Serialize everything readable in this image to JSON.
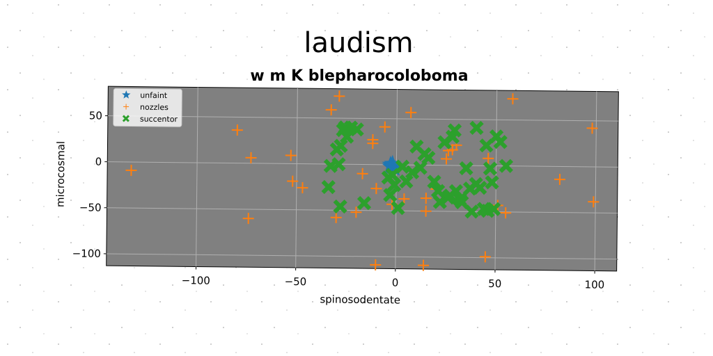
{
  "chart_data": {
    "type": "scatter",
    "title": "laudism",
    "subtitle": "w m K blepharocoloboma",
    "xlabel": "spinosodentate",
    "ylabel": "microcosmal",
    "xlim": [
      -145,
      111
    ],
    "ylim": [
      -113,
      82
    ],
    "xticks": [
      -100,
      -50,
      0,
      50,
      100
    ],
    "yticks": [
      -100,
      -50,
      0,
      50
    ],
    "xtick_labels": [
      "−100",
      "−50",
      "0",
      "50",
      "100"
    ],
    "ytick_labels": [
      "−100",
      "−50",
      "0",
      "50"
    ],
    "grid": true,
    "legend_position": "top-left",
    "series": [
      {
        "name": "unfaint",
        "marker": "star",
        "color": "#1f77b4",
        "points": [
          [
            -3,
            0
          ],
          [
            -2,
            -2
          ],
          [
            -1,
            -4
          ],
          [
            -3,
            -2
          ],
          [
            -2,
            1
          ]
        ]
      },
      {
        "name": "nozzles",
        "marker": "plus",
        "color": "#ff7f0e",
        "points": [
          [
            -133,
            -9
          ],
          [
            -80,
            36
          ],
          [
            -73,
            6
          ],
          [
            -74,
            -60
          ],
          [
            -53,
            9
          ],
          [
            -52,
            -19
          ],
          [
            -47,
            -26
          ],
          [
            -33,
            59
          ],
          [
            -29,
            74
          ],
          [
            -30,
            -58
          ],
          [
            -17,
            -10
          ],
          [
            -20,
            -52
          ],
          [
            -12,
            23
          ],
          [
            -12,
            27
          ],
          [
            -10,
            -26
          ],
          [
            -10,
            -109
          ],
          [
            -6,
            41
          ],
          [
            -2,
            -43
          ],
          [
            4,
            -37
          ],
          [
            7,
            57
          ],
          [
            14,
            -109
          ],
          [
            15,
            -50
          ],
          [
            15,
            -36
          ],
          [
            20,
            -26
          ],
          [
            25,
            7
          ],
          [
            26,
            16
          ],
          [
            30,
            22
          ],
          [
            28,
            17
          ],
          [
            45,
            -99
          ],
          [
            46,
            8
          ],
          [
            51,
            -43
          ],
          [
            55,
            -51
          ],
          [
            58,
            73
          ],
          [
            82,
            -14
          ],
          [
            98,
            42
          ],
          [
            99,
            -38
          ]
        ]
      },
      {
        "name": "succentor",
        "marker": "x",
        "color": "#2ca02c",
        "points": [
          [
            -33,
            -2
          ],
          [
            -34,
            -25
          ],
          [
            -30,
            16
          ],
          [
            -29,
            0
          ],
          [
            -28,
            -46
          ],
          [
            -27,
            37
          ],
          [
            -26,
            40
          ],
          [
            -23,
            40
          ],
          [
            -20,
            38
          ],
          [
            -28,
            20
          ],
          [
            -25,
            30
          ],
          [
            -16,
            -42
          ],
          [
            -4,
            -14
          ],
          [
            -3,
            -33
          ],
          [
            -1,
            -22
          ],
          [
            -2,
            -11
          ],
          [
            1,
            -47
          ],
          [
            3,
            -2
          ],
          [
            5,
            -18
          ],
          [
            8,
            -8
          ],
          [
            10,
            20
          ],
          [
            12,
            -3
          ],
          [
            14,
            12
          ],
          [
            16,
            8
          ],
          [
            19,
            -18
          ],
          [
            21,
            -28
          ],
          [
            22,
            -40
          ],
          [
            24,
            25
          ],
          [
            26,
            -35
          ],
          [
            27,
            -33
          ],
          [
            28,
            31
          ],
          [
            29,
            38
          ],
          [
            30,
            -28
          ],
          [
            32,
            -37
          ],
          [
            33,
            -40
          ],
          [
            35,
            -3
          ],
          [
            37,
            -25
          ],
          [
            38,
            -50
          ],
          [
            40,
            -20
          ],
          [
            40,
            41
          ],
          [
            42,
            -24
          ],
          [
            44,
            -47
          ],
          [
            45,
            22
          ],
          [
            46,
            -49
          ],
          [
            47,
            -3
          ],
          [
            48,
            -18
          ],
          [
            49,
            -47
          ],
          [
            50,
            32
          ],
          [
            52,
            26
          ],
          [
            55,
            0
          ]
        ]
      }
    ]
  }
}
